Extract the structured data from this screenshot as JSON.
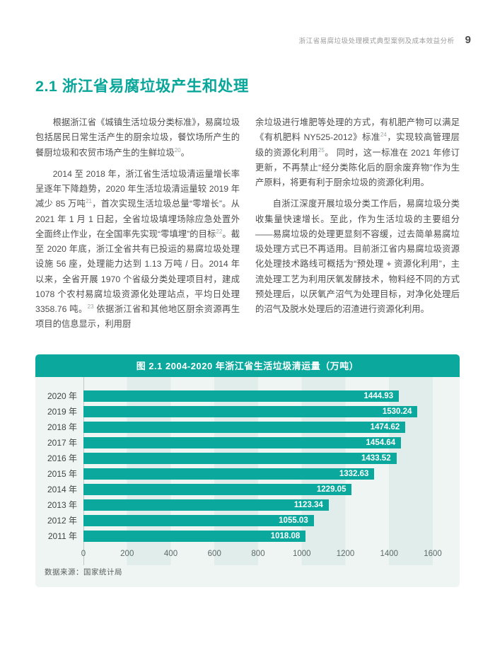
{
  "header": {
    "title": "浙江省易腐垃圾处理模式典型案例及成本效益分析",
    "page_number": "9"
  },
  "section": {
    "title": "2.1 浙江省易腐垃圾产生和处理"
  },
  "body": {
    "left_column": [
      {
        "indent": true,
        "text": "根据浙江省《城镇生活垃圾分类标准》，易腐垃圾包括居民日常生活产生的厨余垃圾，餐饮场所产生的餐厨垃圾和农贸市场产生的生鲜垃圾[20]。"
      },
      {
        "indent": true,
        "text": "2014 至 2018 年，浙江省生活垃圾清运量增长率呈逐年下降趋势，2020 年生活垃圾清运量较 2019 年减少 85 万吨[21]，首次实现生活垃圾总量“零增长”。从 2021 年 1 月 1 日起，全省垃圾填埋场除应急处置外全面终止作业，在全国率先实现“零填埋”的目标[22]。截至 2020 年底，浙江全省共有已投运的易腐垃圾处理设施 56 座，处理能力达到 1.13 万吨 / 日。2014 年以来，全省开展 1970 个省级分类处理项目村，建成 1078 个农村易腐垃圾资源化处理站点，平均日处理 3358.76 吨。[23] 依据浙江省和其他地区厨余资源再生项目的信息显示，利用厨"
      }
    ],
    "right_column": [
      {
        "indent": false,
        "text": "余垃圾进行堆肥等处理的方式，有机肥产物可以满足《有机肥料 NY525-2012》标准[24]，实现较高管理层级的资源化利用[25]。 同时，这一标准在 2021 年修订更新，不再禁止“经分类陈化后的厨余废弃物”作为生产原料，将更有利于厨余垃圾的资源化利用。"
      },
      {
        "indent": true,
        "text": "自浙江深度开展垃圾分类工作后，易腐垃圾分类收集量快速增长。至此，作为生活垃圾的主要组分——易腐垃圾的处理更显刻不容缓，过去简单易腐垃圾处理方式已不再适用。目前浙江省内易腐垃圾资源化处理技术路线可概括为“预处理 + 资源化利用”，主流处理工艺为利用厌氧发酵技术，物料经不同的方式预处理后，以厌氧产沼气为处理目标，对净化处理后的沼气及脱水处理后的沼渣进行资源化利用。"
      }
    ]
  },
  "chart_data": {
    "type": "bar",
    "orientation": "horizontal",
    "title": "图 2.1 2004-2020 年浙江省生活垃圾清运量（万吨）",
    "categories": [
      "2020 年",
      "2019 年",
      "2018 年",
      "2017 年",
      "2016 年",
      "2015 年",
      "2014 年",
      "2013 年",
      "2012 年",
      "2011 年"
    ],
    "values": [
      1444.93,
      1530.24,
      1474.62,
      1454.64,
      1433.52,
      1332.63,
      1229.05,
      1123.34,
      1055.03,
      1018.08
    ],
    "xticks": [
      0,
      200,
      400,
      600,
      800,
      1000,
      1200,
      1400,
      1600
    ],
    "xlim": [
      0,
      1600
    ],
    "grid": "vertical-bands-every-200",
    "legend": "none",
    "source": "数据来源：国家统计局",
    "colors": {
      "bar": "#0ba89d",
      "title_bar_bg": "#0ba89d",
      "panel_bg": "#eef5f3",
      "band": "#e1edeb",
      "value_label": "#ffffff"
    }
  }
}
